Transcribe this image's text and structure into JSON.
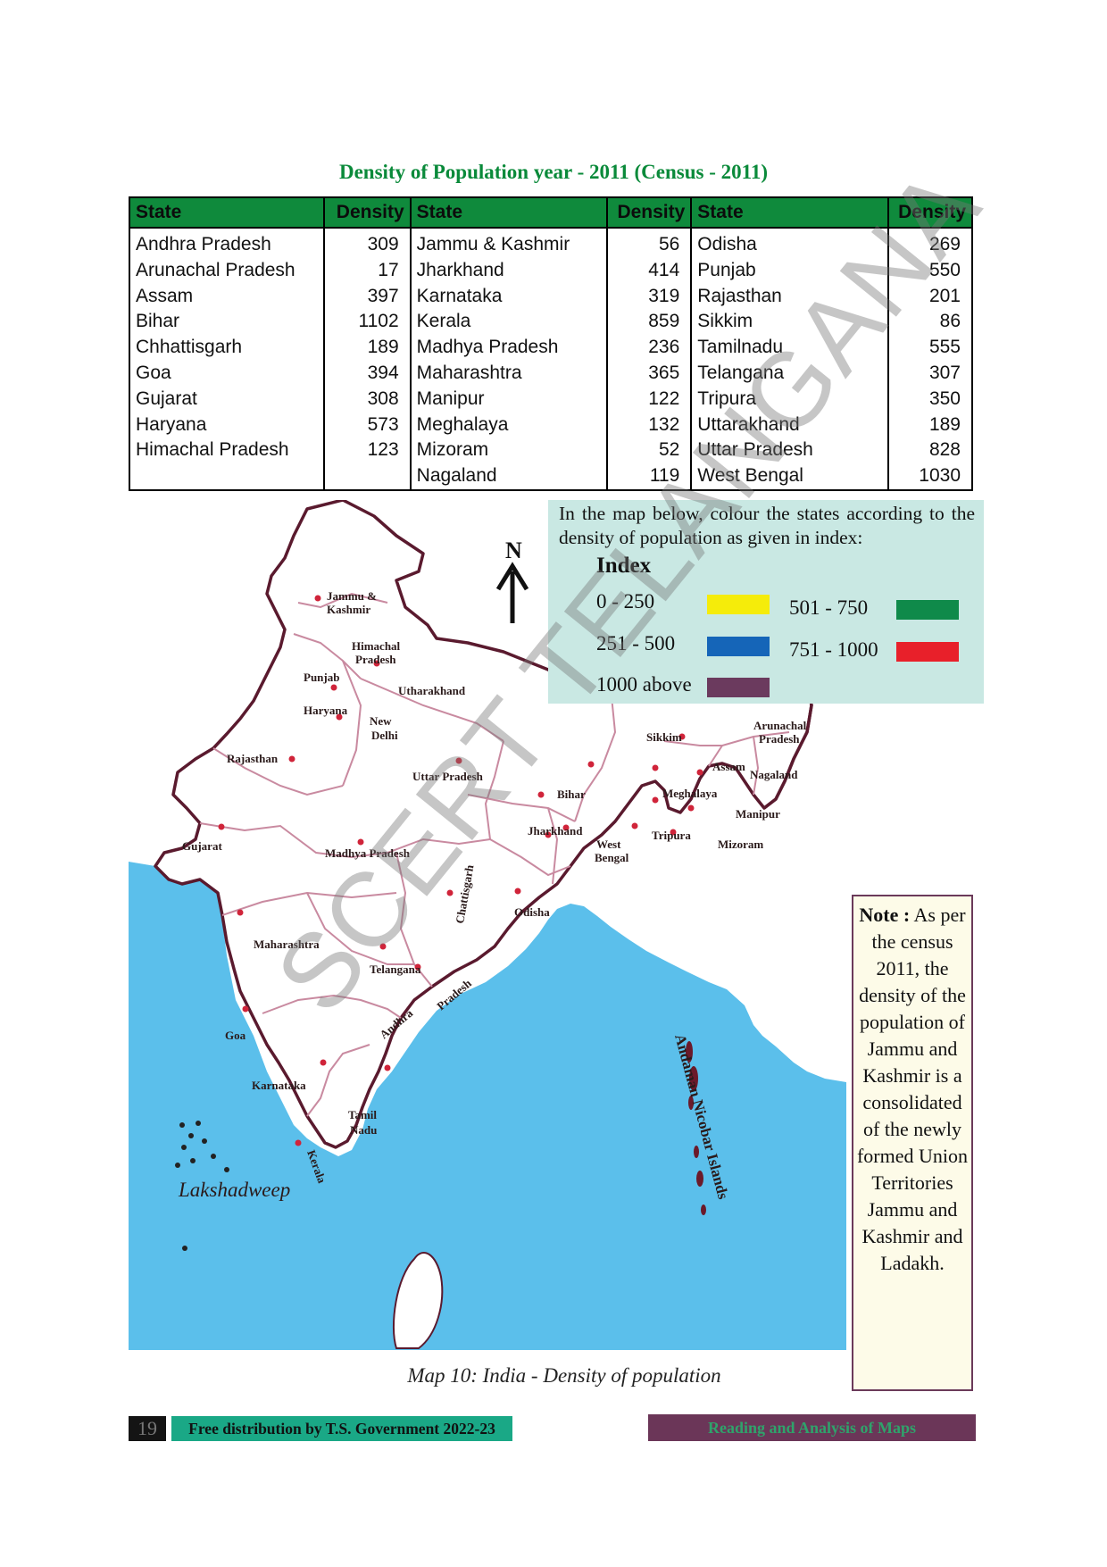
{
  "page": {
    "title": "Density of Population year - 2011 (Census - 2011)",
    "watermark": "SCERT TELANGANA"
  },
  "table": {
    "headers": [
      "State",
      "Density",
      "State",
      "Density",
      "State",
      "Density"
    ],
    "rows": [
      [
        "Andhra Pradesh",
        "309",
        "Jammu & Kashmir",
        "56",
        "Odisha",
        "269"
      ],
      [
        "Arunachal Pradesh",
        "17",
        "Jharkhand",
        "414",
        "Punjab",
        "550"
      ],
      [
        "Assam",
        "397",
        "Karnataka",
        "319",
        "Rajasthan",
        "201"
      ],
      [
        "Bihar",
        "1102",
        "Kerala",
        "859",
        "Sikkim",
        "86"
      ],
      [
        "Chhattisgarh",
        "189",
        "Madhya Pradesh",
        "236",
        "Tamilnadu",
        "555"
      ],
      [
        "Goa",
        "394",
        "Maharashtra",
        "365",
        "Telangana",
        "307"
      ],
      [
        "Gujarat",
        "308",
        "Manipur",
        "122",
        "Tripura",
        "350"
      ],
      [
        "Haryana",
        "573",
        "Meghalaya",
        "132",
        "Uttarakhand",
        "189"
      ],
      [
        "Himachal Pradesh",
        "123",
        "Mizoram",
        "52",
        "Uttar Pradesh",
        "828"
      ],
      [
        "",
        "",
        "Nagaland",
        "119",
        "West Bengal",
        "1030"
      ]
    ]
  },
  "instruction": {
    "text": "In the map below, colour the states according to the density of population as given in index:",
    "index_title": "Index",
    "legend": [
      {
        "label": "0 - 250",
        "color": "#f5ec0a"
      },
      {
        "label": "251 - 500",
        "color": "#1565b8"
      },
      {
        "label": "1000 above",
        "color": "#6b3a5e"
      },
      {
        "label": "501 - 750",
        "color": "#0f8a4a"
      },
      {
        "label": "751 - 1000",
        "color": "#e8202a"
      }
    ]
  },
  "map": {
    "north": "N",
    "labels": {
      "jk": "Jammu &",
      "jk2": "Kashmir",
      "hp": "Himachal",
      "hp2": "Pradesh",
      "punjab": "Punjab",
      "uk": "Utharakhand",
      "haryana": "Haryana",
      "delhi": "New",
      "delhi2": "Delhi",
      "rajasthan": "Rajasthan",
      "up": "Uttar Pradesh",
      "bihar": "Bihar",
      "sikkim": "Sikkim",
      "arunachal": "Arunachal",
      "arunachal2": "Pradesh",
      "assam": "Assam",
      "nagaland": "Nagaland",
      "meghalaya": "Meghalaya",
      "manipur": "Manipur",
      "tripura": "Tripura",
      "mizoram": "Mizoram",
      "gujarat": "Gujarat",
      "mp": "Madhya Pradesh",
      "jharkhand": "Jharkhand",
      "wb": "West",
      "wb2": "Bengal",
      "chhattisgarh": "Chattisgarh",
      "odisha": "Odisha",
      "maharashtra": "Maharashtra",
      "telangana": "Telangana",
      "ap": "Andhra",
      "ap2": "Pradesh",
      "goa": "Goa",
      "karnataka": "Karnataka",
      "tn": "Tamil",
      "tn2": "Nadu",
      "kerala": "Kerala",
      "lakshadweep": "Lakshadweep",
      "andaman": "Andaman Nicobar Islands"
    },
    "colors": {
      "sea": "#5bbfeb",
      "border": "#5a1a2e",
      "state_line": "#c98aa0",
      "dot": "#d0243a"
    }
  },
  "note": {
    "label": "Note :",
    "text": "As per the census 2011, the density of the population of Jammu and Kashmir is a consolidated of the newly formed Union Territories Jammu and Kashmir and Ladakh."
  },
  "caption": "Map 10: India - Density of population",
  "footer": {
    "page_number": "19",
    "left": "Free distribution by T.S. Government 2022-23",
    "right": "Reading and Analysis of Maps"
  }
}
